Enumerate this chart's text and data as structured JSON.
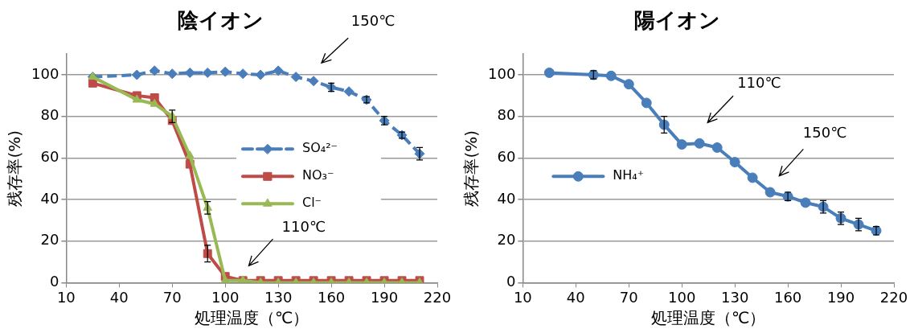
{
  "chart_data": [
    {
      "type": "line",
      "title": "陰イオン",
      "xlabel": "処理温度（℃）",
      "ylabel": "残存率(%)",
      "x": [
        25,
        50,
        60,
        70,
        80,
        90,
        100,
        110,
        120,
        130,
        140,
        150,
        160,
        170,
        180,
        190,
        200,
        210
      ],
      "series": [
        {
          "name": "SO₄²⁻",
          "color": "#4a7ebb",
          "marker": "diamond",
          "line_style": "dashed",
          "values": [
            99,
            100,
            102,
            100.5,
            101,
            101,
            101.5,
            100.5,
            100,
            102,
            99,
            97,
            94,
            92,
            88,
            78,
            71,
            62
          ],
          "errors": [
            null,
            null,
            null,
            null,
            null,
            null,
            null,
            null,
            null,
            null,
            null,
            null,
            2,
            null,
            1.5,
            2,
            1.5,
            3
          ]
        },
        {
          "name": "NO₃⁻",
          "color": "#be4b48",
          "marker": "square",
          "line_style": "solid",
          "values": [
            96,
            90,
            89,
            78,
            57,
            14,
            3,
            1,
            1,
            1,
            1,
            1,
            1,
            1,
            1,
            1,
            1,
            1
          ],
          "errors": [
            null,
            null,
            null,
            null,
            null,
            4,
            null,
            null,
            null,
            null,
            null,
            null,
            null,
            null,
            null,
            null,
            null,
            null
          ]
        },
        {
          "name": "Cl⁻",
          "color": "#98b954",
          "marker": "triangle",
          "line_style": "solid",
          "values": [
            99,
            88,
            86,
            80,
            61,
            36,
            1,
            1,
            0,
            0,
            0,
            0,
            0,
            0,
            0,
            0,
            0,
            0
          ],
          "errors": [
            null,
            null,
            null,
            3,
            null,
            3,
            null,
            null,
            null,
            null,
            null,
            null,
            null,
            null,
            null,
            null,
            null,
            null
          ]
        }
      ],
      "xlim": [
        10,
        220
      ],
      "xticks": [
        10,
        40,
        70,
        100,
        130,
        160,
        190,
        220
      ],
      "ylim": [
        0,
        110
      ],
      "yticks": [
        0,
        20,
        40,
        60,
        80,
        100
      ],
      "grid": "y",
      "legend": "right",
      "annotations": [
        "150℃",
        "110℃"
      ]
    },
    {
      "type": "line",
      "title": "陽イオン",
      "xlabel": "処理温度（℃）",
      "ylabel": "残存率(%)",
      "x": [
        25,
        50,
        60,
        70,
        80,
        90,
        100,
        110,
        120,
        130,
        140,
        150,
        160,
        170,
        180,
        190,
        200,
        210
      ],
      "series": [
        {
          "name": "NH₄⁺",
          "color": "#4a7ebb",
          "marker": "circle",
          "line_style": "solid",
          "values": [
            101,
            100,
            99.5,
            95.5,
            86.5,
            76,
            66.5,
            67,
            65,
            58,
            50.5,
            43.5,
            41.5,
            38.5,
            36.5,
            31,
            28,
            25
          ],
          "errors": [
            null,
            2,
            null,
            null,
            null,
            4,
            null,
            null,
            null,
            null,
            null,
            null,
            2,
            null,
            3,
            3,
            3,
            2
          ]
        }
      ],
      "xlim": [
        10,
        220
      ],
      "xticks": [
        10,
        40,
        70,
        100,
        130,
        160,
        190,
        220
      ],
      "ylim": [
        0,
        110
      ],
      "yticks": [
        0,
        20,
        40,
        60,
        80,
        100
      ],
      "grid": "y",
      "legend": "left",
      "annotations": [
        "110℃",
        "150℃"
      ]
    }
  ]
}
